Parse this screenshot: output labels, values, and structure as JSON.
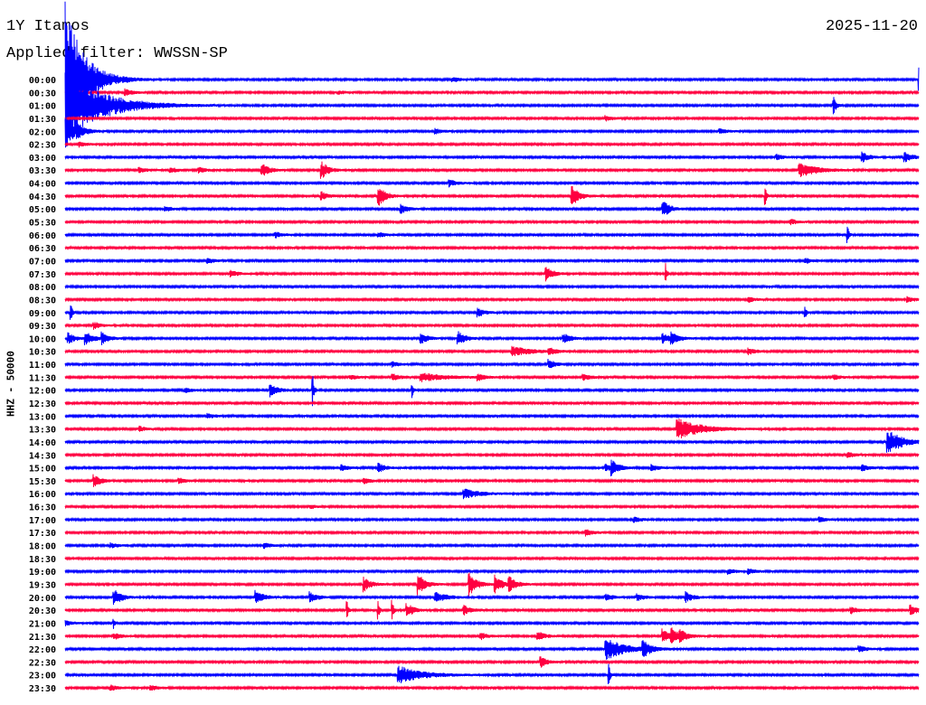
{
  "header": {
    "station": "1Y Itamos",
    "date": "2025-11-20",
    "filter": "Applied filter: WWSSN-SP"
  },
  "chart_data": {
    "type": "line",
    "title": "1Y Itamos",
    "ylabel": "HHZ - 50000",
    "xlabel": "",
    "minutes_per_row": 30,
    "colors": {
      "even": "#0000ff",
      "odd": "#ff0040"
    },
    "rows": [
      {
        "label": "00:00",
        "events": [
          [
            0.0,
            90,
            0.6
          ],
          [
            13.6,
            3
          ],
          [
            30,
            14,
            0.05
          ]
        ]
      },
      {
        "label": "00:30",
        "events": [
          [
            2.1,
            4
          ],
          [
            9.6,
            2
          ]
        ]
      },
      {
        "label": "01:00",
        "events": [
          [
            0.0,
            40,
            1.2
          ],
          [
            27,
            10,
            0.1
          ]
        ]
      },
      {
        "label": "01:30",
        "events": [
          [
            19,
            3
          ]
        ]
      },
      {
        "label": "02:00",
        "events": [
          [
            0.0,
            20,
            0.3
          ],
          [
            0.4,
            6
          ],
          [
            13,
            3
          ],
          [
            23,
            3
          ]
        ]
      },
      {
        "label": "02:30",
        "events": [
          [
            0.5,
            3
          ]
        ]
      },
      {
        "label": "03:00",
        "events": [
          [
            25,
            3
          ],
          [
            28,
            6
          ],
          [
            29.5,
            6
          ]
        ]
      },
      {
        "label": "03:30",
        "events": [
          [
            2.6,
            3
          ],
          [
            3.7,
            3
          ],
          [
            4.7,
            3
          ],
          [
            6.9,
            8
          ],
          [
            9,
            10
          ],
          [
            25.8,
            8,
            0.6
          ]
        ]
      },
      {
        "label": "04:00",
        "events": [
          [
            13.5,
            4
          ]
        ]
      },
      {
        "label": "04:30",
        "events": [
          [
            9,
            5
          ],
          [
            11,
            12
          ],
          [
            17.8,
            12
          ],
          [
            24.6,
            14,
            0.05
          ]
        ]
      },
      {
        "label": "05:00",
        "events": [
          [
            3.5,
            3
          ],
          [
            11.8,
            5
          ],
          [
            21,
            10
          ]
        ]
      },
      {
        "label": "05:30",
        "events": [
          [
            25.5,
            3
          ]
        ]
      },
      {
        "label": "06:00",
        "events": [
          [
            7.4,
            3
          ],
          [
            11,
            3
          ],
          [
            27.5,
            10,
            0.05
          ]
        ]
      },
      {
        "label": "06:30",
        "events": []
      },
      {
        "label": "07:00",
        "events": [
          [
            5,
            3
          ],
          [
            26,
            3
          ]
        ]
      },
      {
        "label": "07:30",
        "events": [
          [
            5.8,
            4
          ],
          [
            16.9,
            8
          ],
          [
            21.1,
            12,
            0.05
          ]
        ]
      },
      {
        "label": "08:00",
        "events": []
      },
      {
        "label": "08:30",
        "events": [
          [
            24,
            3
          ],
          [
            29.6,
            3
          ]
        ]
      },
      {
        "label": "09:00",
        "events": [
          [
            0.2,
            12,
            0.05
          ],
          [
            14.5,
            5
          ],
          [
            26,
            8,
            0.05
          ]
        ]
      },
      {
        "label": "09:30",
        "events": [
          [
            1,
            4
          ]
        ]
      },
      {
        "label": "10:00",
        "events": [
          [
            0.1,
            6
          ],
          [
            0.7,
            8
          ],
          [
            1.3,
            6
          ],
          [
            12.5,
            6
          ],
          [
            13.8,
            8
          ],
          [
            17.5,
            6
          ],
          [
            21,
            6
          ],
          [
            21.3,
            6
          ]
        ]
      },
      {
        "label": "10:30",
        "events": [
          [
            15.7,
            6,
            0.6
          ],
          [
            17,
            4
          ],
          [
            24,
            4
          ]
        ]
      },
      {
        "label": "11:00",
        "events": [
          [
            11.5,
            3
          ],
          [
            17,
            5
          ]
        ]
      },
      {
        "label": "11:30",
        "events": [
          [
            10,
            3
          ],
          [
            11.5,
            4
          ],
          [
            12.5,
            5,
            0.8
          ],
          [
            14.5,
            4
          ],
          [
            18.2,
            4
          ],
          [
            27,
            3
          ]
        ]
      },
      {
        "label": "12:00",
        "events": [
          [
            4.2,
            3
          ],
          [
            7.2,
            8
          ],
          [
            8.7,
            18,
            0.05
          ],
          [
            12.2,
            8,
            0.05
          ]
        ]
      },
      {
        "label": "12:30",
        "events": []
      },
      {
        "label": "13:00",
        "events": [
          [
            5,
            3
          ]
        ]
      },
      {
        "label": "13:30",
        "events": [
          [
            2.6,
            3
          ],
          [
            21.5,
            12,
            0.8
          ]
        ]
      },
      {
        "label": "14:00",
        "events": [
          [
            28.9,
            14,
            0.5
          ]
        ]
      },
      {
        "label": "14:30",
        "events": [
          [
            27.5,
            3
          ]
        ]
      },
      {
        "label": "15:00",
        "events": [
          [
            9.7,
            4
          ],
          [
            11,
            5
          ],
          [
            19,
            4
          ],
          [
            19.2,
            8
          ],
          [
            20.6,
            4
          ],
          [
            28,
            4
          ]
        ]
      },
      {
        "label": "15:30",
        "events": [
          [
            1,
            7
          ],
          [
            4,
            3
          ],
          [
            10.5,
            3
          ]
        ]
      },
      {
        "label": "16:00",
        "events": [
          [
            14,
            6,
            0.5
          ]
        ]
      },
      {
        "label": "16:30",
        "events": [
          [
            8.6,
            2
          ]
        ]
      },
      {
        "label": "17:00",
        "events": [
          [
            20,
            3
          ],
          [
            26.5,
            3
          ]
        ]
      },
      {
        "label": "17:30",
        "events": [
          [
            18.3,
            4
          ]
        ]
      },
      {
        "label": "18:00",
        "events": [
          [
            1.6,
            3
          ],
          [
            7,
            3
          ]
        ]
      },
      {
        "label": "18:30",
        "events": []
      },
      {
        "label": "19:00",
        "events": [
          [
            23.3,
            3
          ],
          [
            24,
            3
          ]
        ]
      },
      {
        "label": "19:30",
        "events": [
          [
            10.5,
            8
          ],
          [
            12.4,
            12
          ],
          [
            14.2,
            14
          ],
          [
            15.1,
            10
          ],
          [
            15.6,
            8
          ]
        ]
      },
      {
        "label": "20:00",
        "events": [
          [
            1.7,
            10
          ],
          [
            6.7,
            8
          ],
          [
            8.6,
            6
          ],
          [
            13,
            6,
            0.4
          ],
          [
            19,
            4
          ],
          [
            20.1,
            4
          ],
          [
            21.8,
            6
          ]
        ]
      },
      {
        "label": "20:30",
        "events": [
          [
            9.9,
            12,
            0.05
          ],
          [
            11,
            10,
            0.05
          ],
          [
            11.5,
            12,
            0.05
          ],
          [
            12,
            8
          ],
          [
            14,
            6
          ],
          [
            27.6,
            4
          ],
          [
            29.7,
            6
          ]
        ]
      },
      {
        "label": "21:00",
        "events": [
          [
            0,
            3
          ],
          [
            1.7,
            8,
            0.05
          ]
        ]
      },
      {
        "label": "21:30",
        "events": [
          [
            1.7,
            4
          ],
          [
            14.6,
            4
          ],
          [
            16.6,
            6
          ],
          [
            21,
            8
          ],
          [
            21.3,
            8
          ],
          [
            21.6,
            6
          ]
        ]
      },
      {
        "label": "22:00",
        "events": [
          [
            19,
            14,
            0.6
          ],
          [
            20.3,
            10
          ],
          [
            27.9,
            4
          ]
        ]
      },
      {
        "label": "22:30",
        "events": [
          [
            16.7,
            6
          ]
        ]
      },
      {
        "label": "23:00",
        "events": [
          [
            11.7,
            10,
            0.8
          ],
          [
            19.1,
            14,
            0.05
          ]
        ]
      },
      {
        "label": "23:30",
        "events": [
          [
            1.6,
            3
          ],
          [
            3,
            3
          ]
        ]
      }
    ]
  }
}
